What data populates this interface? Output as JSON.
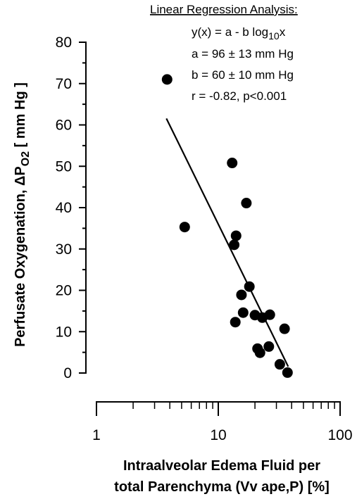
{
  "chart_data": {
    "type": "scatter",
    "x_scale": "log",
    "xlim": [
      1,
      100
    ],
    "ylim": [
      0,
      80
    ],
    "x_ticks": [
      1,
      10,
      100
    ],
    "x_tick_labels": [
      "1",
      "10",
      "100"
    ],
    "y_ticks": [
      0,
      10,
      20,
      30,
      40,
      50,
      60,
      70,
      80
    ],
    "y_tick_labels": [
      "0",
      "10",
      "20",
      "30",
      "40",
      "50",
      "60",
      "70",
      "80"
    ],
    "xlabel_lines": [
      "Intraalveolar Edema Fluid per",
      "total Parenchyma (Vv ape,P) [%]"
    ],
    "ylabel": {
      "prefix": "Perfusate Oxygenation, ",
      "delta": "Δ",
      "p": "P",
      "sub": "O2",
      "suffix": "  [ mm Hg ]"
    },
    "points": [
      {
        "x": 3.8,
        "y": 71
      },
      {
        "x": 5.3,
        "y": 35.3
      },
      {
        "x": 13.0,
        "y": 50.8
      },
      {
        "x": 13.5,
        "y": 31.0
      },
      {
        "x": 14.0,
        "y": 33.2
      },
      {
        "x": 17.0,
        "y": 41.1
      },
      {
        "x": 18.0,
        "y": 20.9
      },
      {
        "x": 15.5,
        "y": 18.9
      },
      {
        "x": 16.0,
        "y": 14.6
      },
      {
        "x": 13.8,
        "y": 12.3
      },
      {
        "x": 20.0,
        "y": 14.0
      },
      {
        "x": 23.0,
        "y": 13.4
      },
      {
        "x": 26.5,
        "y": 14.1
      },
      {
        "x": 35.0,
        "y": 10.7
      },
      {
        "x": 26.0,
        "y": 6.4
      },
      {
        "x": 21.0,
        "y": 5.9
      },
      {
        "x": 22.0,
        "y": 4.9
      },
      {
        "x": 32.0,
        "y": 2.1
      },
      {
        "x": 37.0,
        "y": 0.1
      }
    ],
    "fit": {
      "x_start": 3.75,
      "x_end": 37.5,
      "a": 96,
      "b": 60
    },
    "annotation": {
      "title": "Linear Regression Analysis:",
      "lines": [
        {
          "pre": "y(x) = a - b log",
          "sub": "10",
          "post": "x"
        },
        {
          "pre": "a = 96 ± 13 mm Hg"
        },
        {
          "pre": "b = 60 ± 10 mm Hg"
        },
        {
          "pre": "r = -0.82, p<0.001"
        }
      ]
    },
    "grid": false,
    "colors": {
      "markers": "#000000",
      "line": "#000000"
    }
  }
}
